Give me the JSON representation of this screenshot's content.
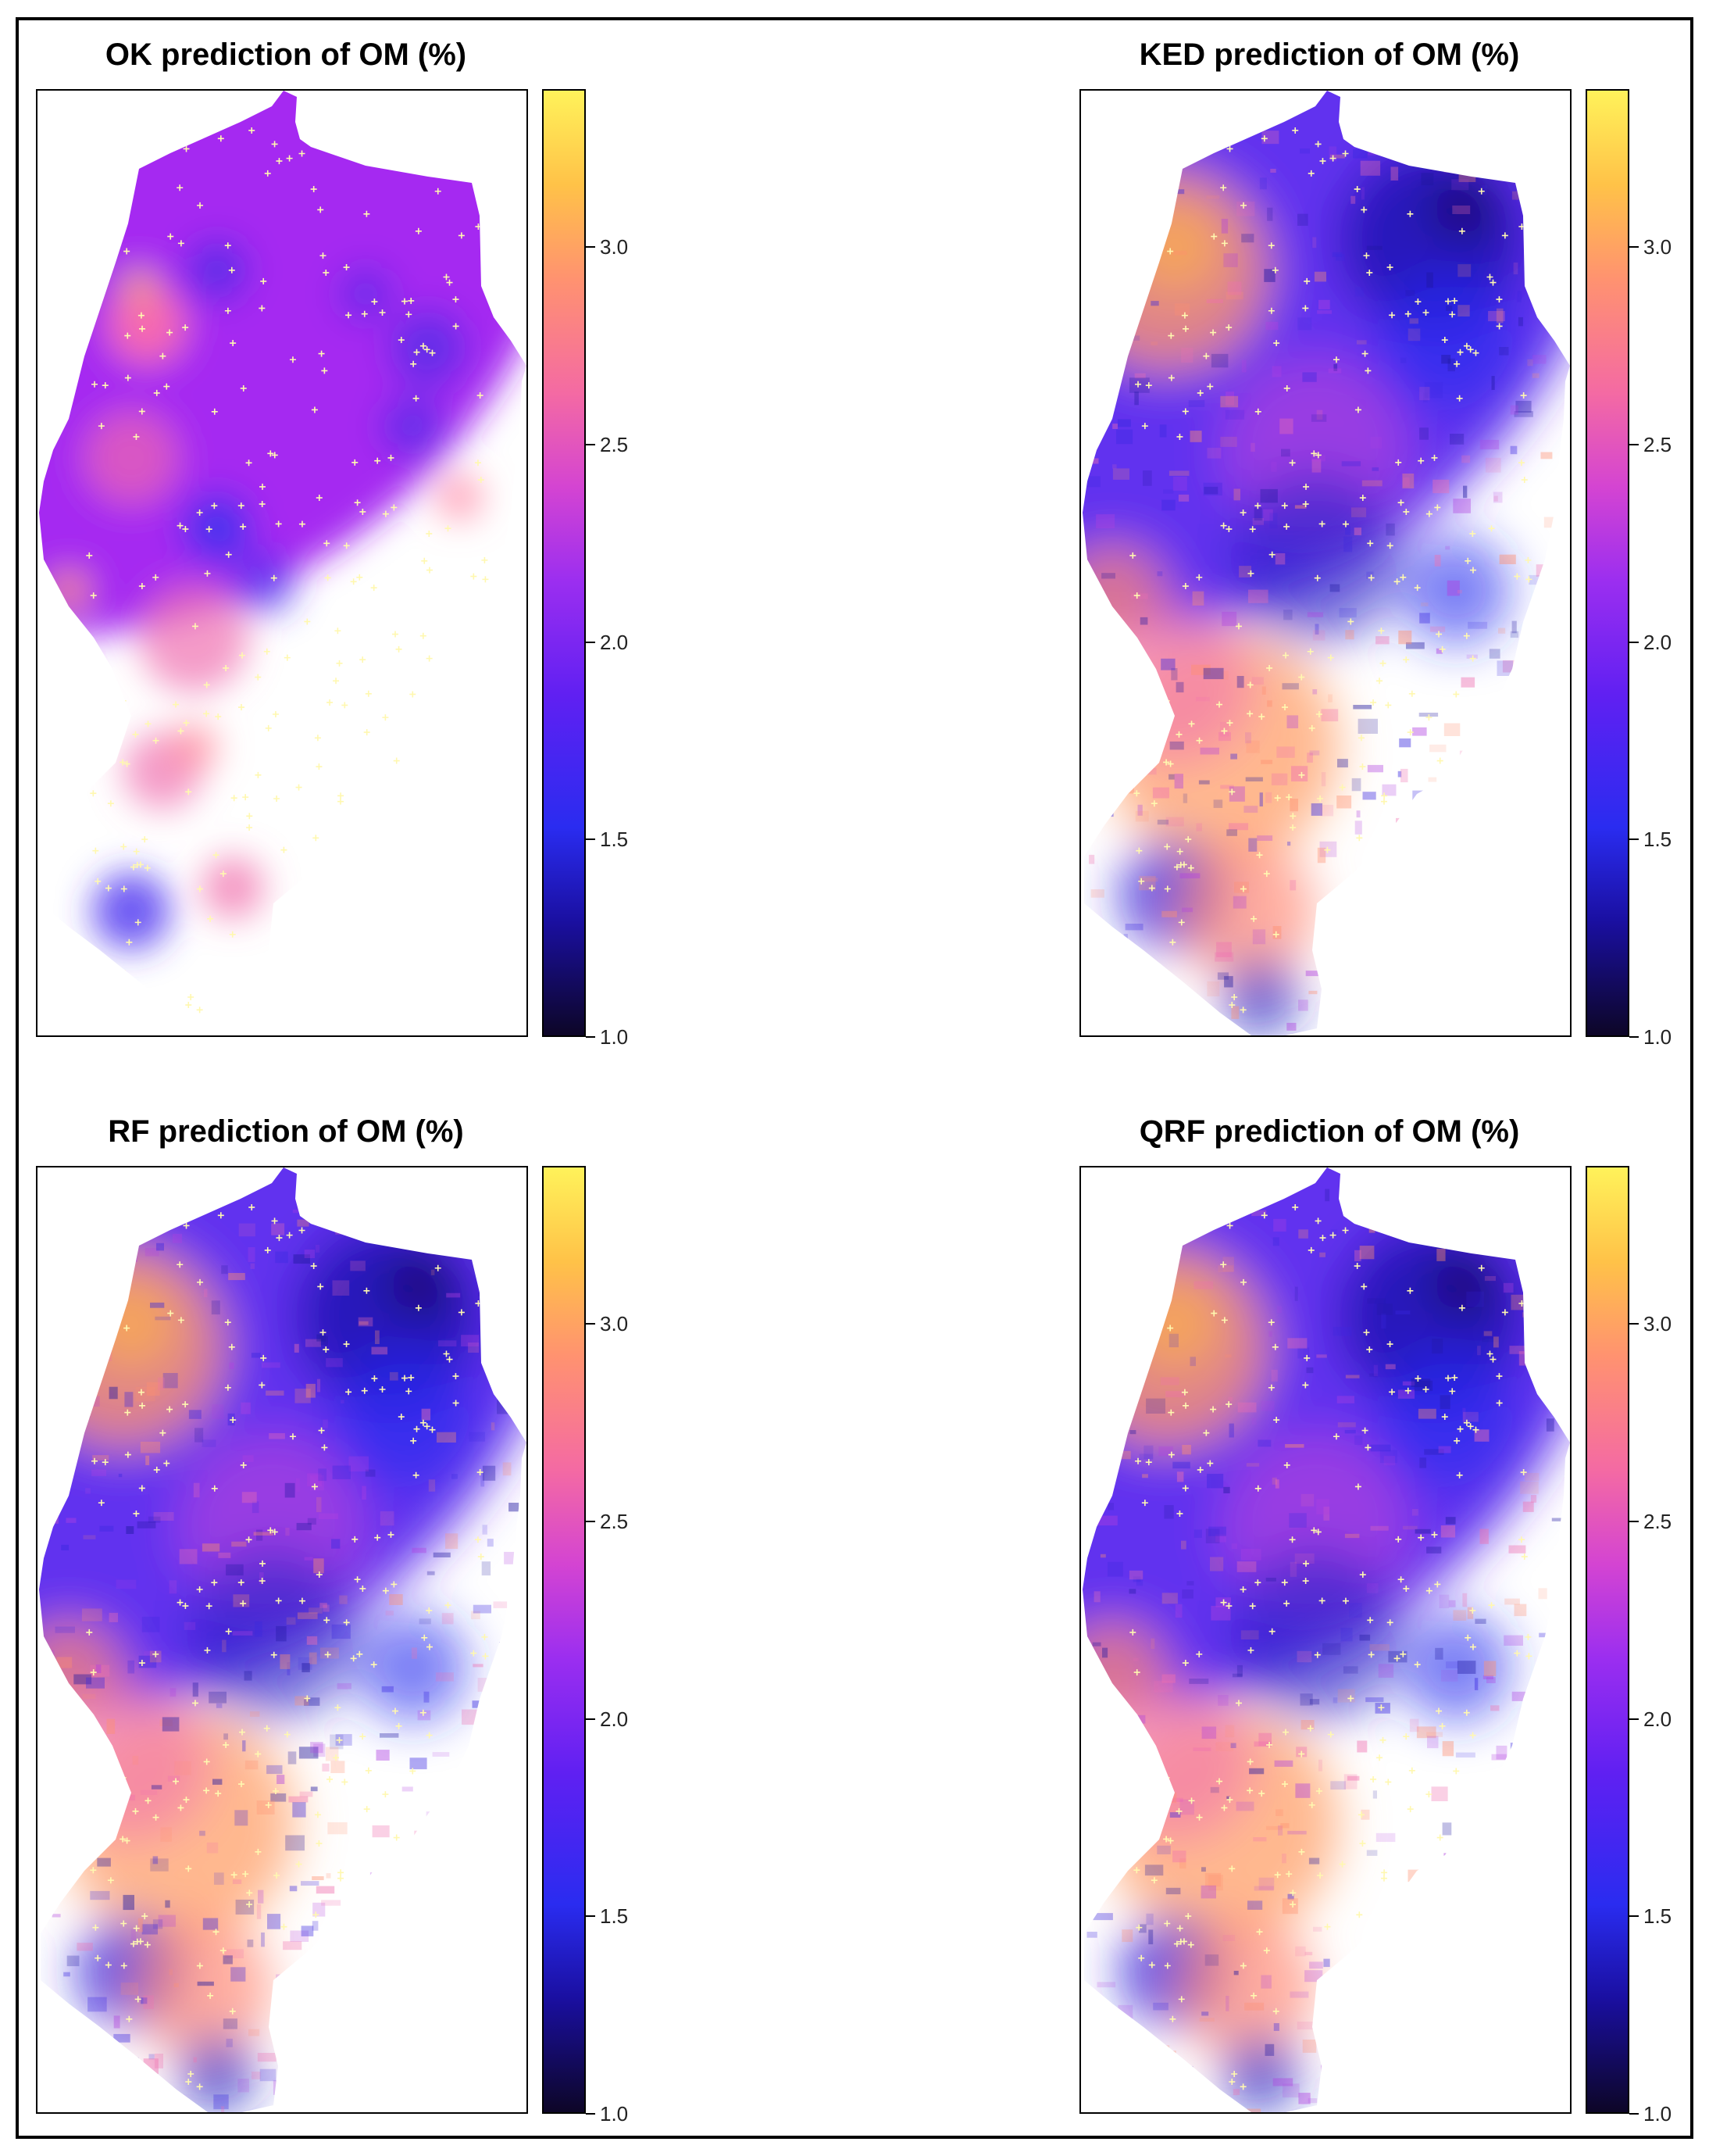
{
  "panels": [
    {
      "id": "ok",
      "title": "OK prediction of OM (%)",
      "style": "smooth"
    },
    {
      "id": "ked",
      "title": "KED prediction of OM (%)",
      "style": "textured"
    },
    {
      "id": "rf",
      "title": "RF prediction of OM (%)",
      "style": "textured"
    },
    {
      "id": "qrf",
      "title": "QRF prediction of OM (%)",
      "style": "textured"
    }
  ],
  "legend": {
    "min": 1.0,
    "max": 3.4,
    "ticks": [
      "1.0",
      "1.5",
      "2.0",
      "2.5",
      "3.0"
    ],
    "tick_values": [
      1.0,
      1.5,
      2.0,
      2.5,
      3.0
    ]
  },
  "colors": {
    "low": "#0d0627",
    "mid_low": "#2a2cf0",
    "mid": "#9b2ef0",
    "mid_high": "#f46aa3",
    "high": "#fff25a",
    "sample_point": "#fff8b0"
  }
}
